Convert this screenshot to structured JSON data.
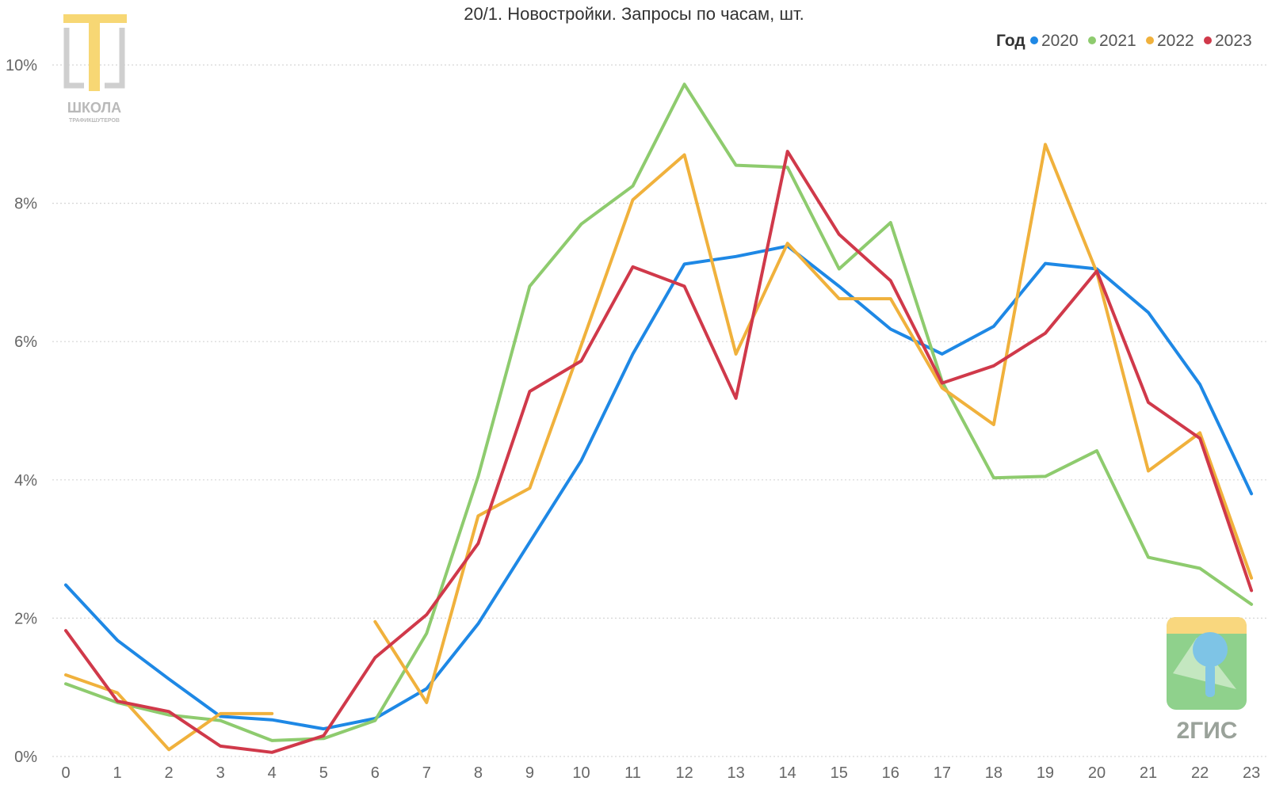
{
  "chart_data": {
    "type": "line",
    "title": "20/1. Новостройки. Запросы по часам, шт.",
    "xlabel": "",
    "ylabel": "",
    "categories": [
      "0",
      "1",
      "2",
      "3",
      "4",
      "5",
      "6",
      "7",
      "8",
      "9",
      "10",
      "11",
      "12",
      "13",
      "14",
      "15",
      "16",
      "17",
      "18",
      "19",
      "20",
      "21",
      "22",
      "23"
    ],
    "y_ticks": [
      "0%",
      "2%",
      "4%",
      "6%",
      "8%",
      "10%"
    ],
    "ylim": [
      0,
      10
    ],
    "y_unit": "%",
    "grid": "horizontal-dotted",
    "legend": {
      "title": "Год",
      "placement": "top-right"
    },
    "series": [
      {
        "name": "2020",
        "color": "#1e88e5",
        "values": [
          2.48,
          1.68,
          1.12,
          0.58,
          0.53,
          0.4,
          0.55,
          0.98,
          1.92,
          3.1,
          4.28,
          5.82,
          7.12,
          7.23,
          7.38,
          6.8,
          6.18,
          5.82,
          6.22,
          7.13,
          7.05,
          6.42,
          5.38,
          3.8
        ]
      },
      {
        "name": "2021",
        "color": "#8ecb6e",
        "values": [
          1.05,
          0.78,
          0.6,
          0.52,
          0.23,
          0.26,
          0.52,
          1.78,
          4.05,
          6.8,
          7.7,
          8.25,
          9.72,
          8.55,
          8.52,
          7.05,
          7.72,
          5.42,
          4.03,
          4.05,
          4.42,
          2.88,
          2.72,
          2.2
        ]
      },
      {
        "name": "2022",
        "color": "#f0b13c",
        "values": [
          1.18,
          0.92,
          0.1,
          0.62,
          0.62,
          null,
          1.95,
          0.78,
          3.48,
          3.88,
          5.95,
          8.05,
          8.7,
          5.82,
          7.42,
          6.62,
          6.62,
          5.33,
          4.8,
          8.85,
          7.0,
          4.13,
          4.68,
          2.58
        ]
      },
      {
        "name": "2023",
        "color": "#d0394a",
        "values": [
          1.82,
          0.8,
          0.65,
          0.15,
          0.06,
          0.3,
          1.43,
          2.05,
          3.08,
          5.28,
          5.72,
          7.08,
          6.8,
          5.18,
          8.75,
          7.55,
          6.88,
          5.4,
          5.65,
          6.12,
          7.02,
          5.12,
          4.6,
          2.4
        ]
      }
    ]
  },
  "logos": {
    "school": {
      "word": "ШКОЛА",
      "sub": "ТРАФИКШУТЕРОВ",
      "gold": "#f7d774",
      "grey": "#cfcfcf"
    },
    "gis": {
      "word": "2ГИС",
      "green": "#8fd18c",
      "yellow": "#f9d77e",
      "blue": "#7ec4e6"
    }
  }
}
